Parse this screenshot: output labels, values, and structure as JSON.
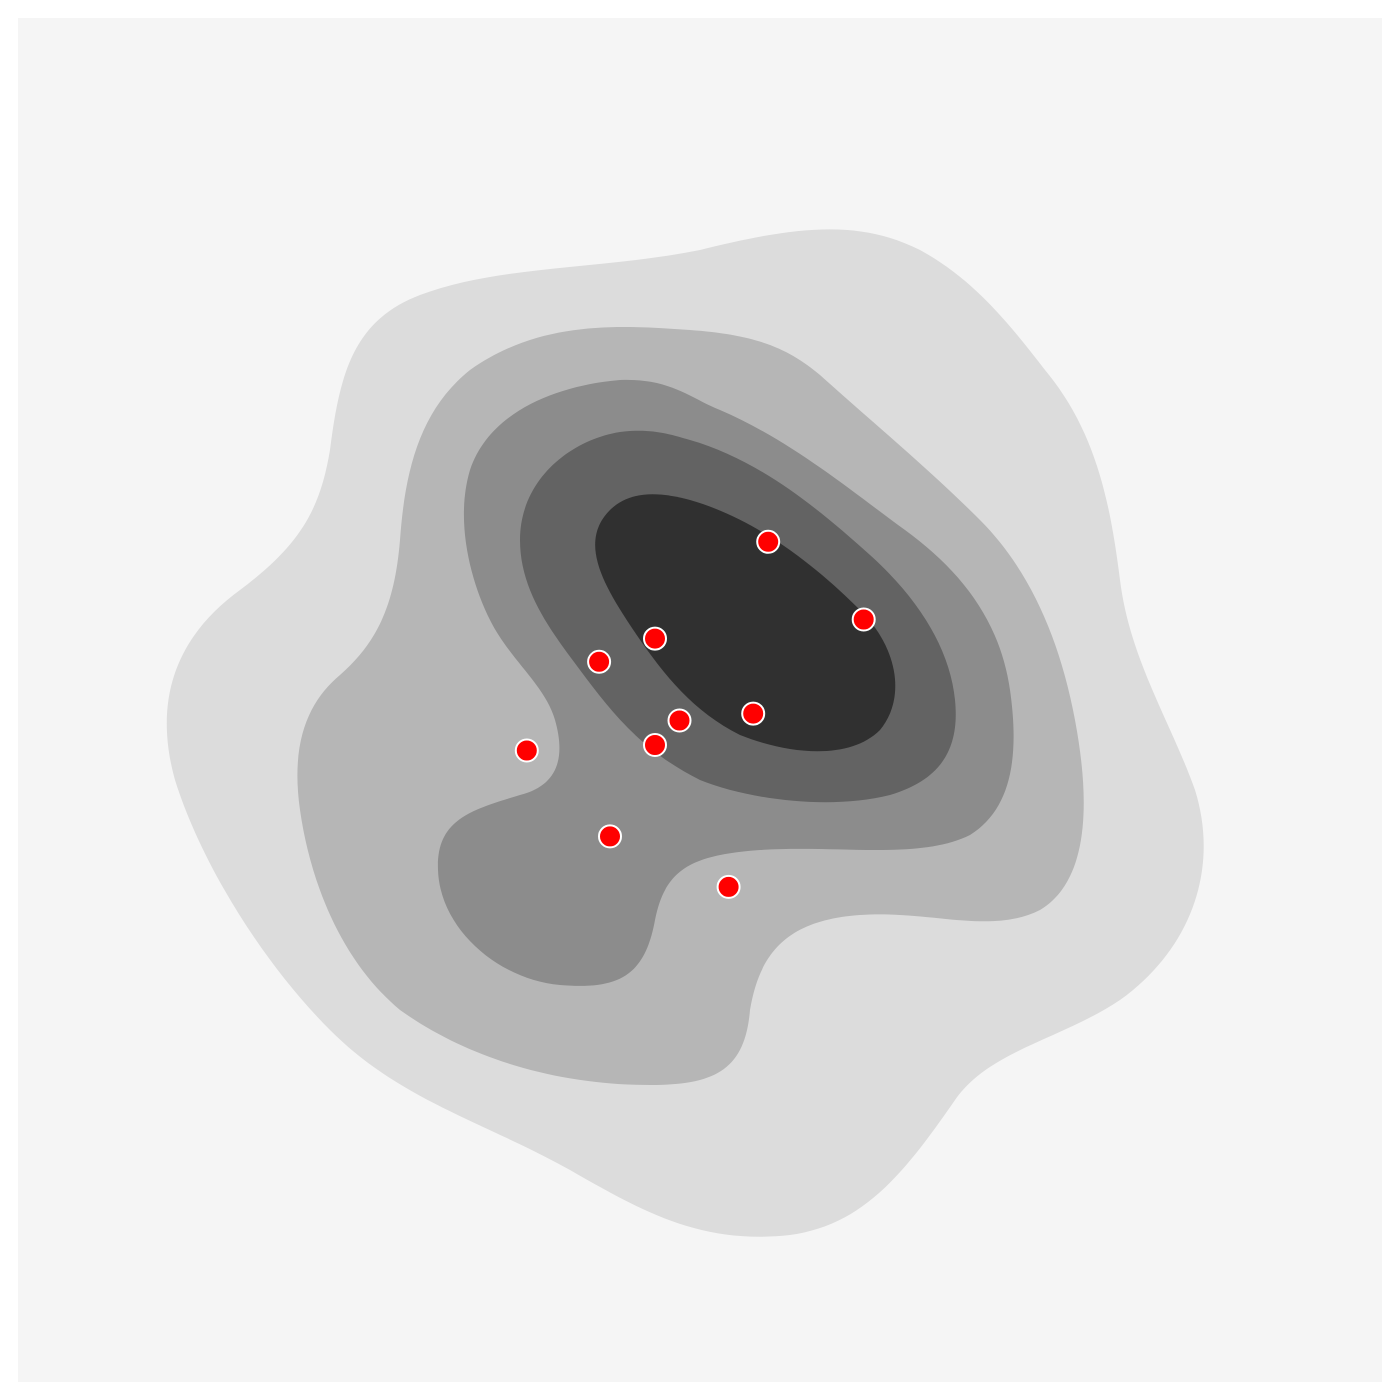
{
  "chart_data": {
    "type": "scatter",
    "subtype": "density-contour",
    "title": "",
    "xlabel": "",
    "ylabel": "",
    "axes_visible": false,
    "grid": false,
    "legend": "none",
    "xlim": [
      0,
      100
    ],
    "ylim": [
      0,
      100
    ],
    "colors": {
      "plot_background": "#f5f5f5",
      "level_1": "#dcdcdc",
      "level_2": "#b6b6b6",
      "level_3": "#8c8c8c",
      "level_4": "#636363",
      "level_5": "#303030",
      "point_fill": "#ff0000",
      "point_stroke": "#ffffff"
    },
    "contour_levels": [
      1,
      2,
      3,
      4,
      5
    ],
    "points": [
      {
        "x": 55.0,
        "y": 61.6
      },
      {
        "x": 62.0,
        "y": 55.9
      },
      {
        "x": 46.7,
        "y": 54.5
      },
      {
        "x": 42.6,
        "y": 52.8
      },
      {
        "x": 48.5,
        "y": 48.5
      },
      {
        "x": 53.9,
        "y": 49.0
      },
      {
        "x": 46.7,
        "y": 46.7
      },
      {
        "x": 37.3,
        "y": 46.3
      },
      {
        "x": 43.4,
        "y": 40.0
      },
      {
        "x": 52.1,
        "y": 36.3
      }
    ]
  }
}
